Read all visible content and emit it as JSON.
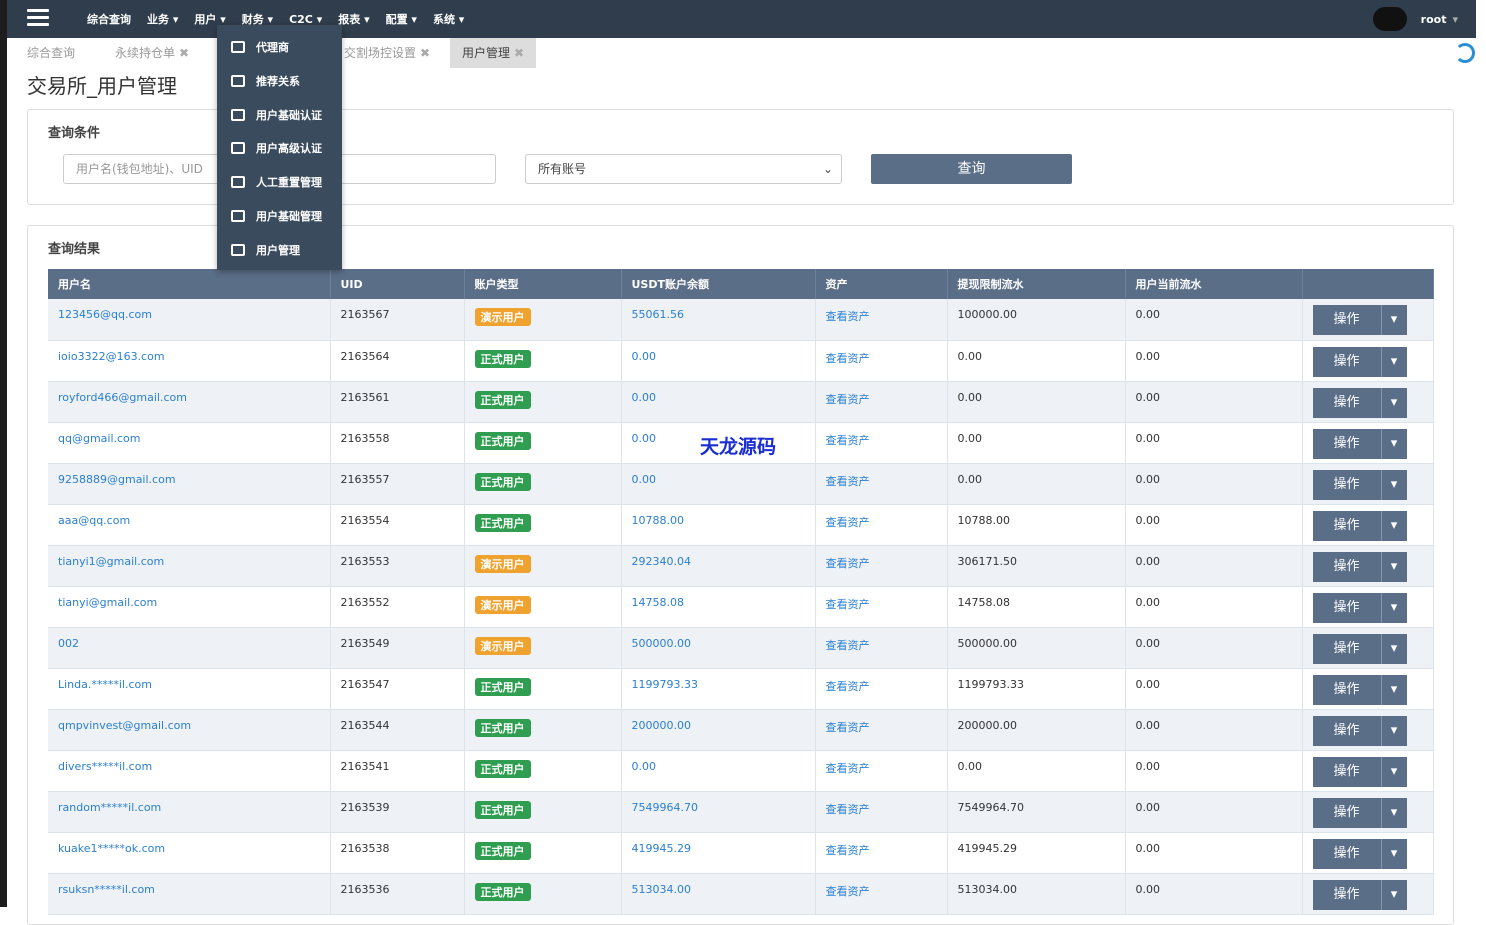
{
  "navbar": {
    "items": [
      "综合查询",
      "业务",
      "用户",
      "财务",
      "C2C",
      "报表",
      "配置",
      "系统"
    ],
    "user": "root"
  },
  "dropdown": {
    "items": [
      "代理商",
      "推荐关系",
      "用户基础认证",
      "用户高级认证",
      "人工重置管理",
      "用户基础管理",
      "用户管理"
    ]
  },
  "tabs": [
    "综合查询",
    "永续持仓单",
    "交割场控设置",
    "用户管理"
  ],
  "page_title": "交易所_用户管理",
  "query": {
    "title": "查询条件",
    "placeholder": "用户名(钱包地址)、UID",
    "select": "所有账号",
    "button": "查询"
  },
  "results": {
    "title": "查询结果",
    "columns": [
      "用户名",
      "UID",
      "账户类型",
      "USDT账户余额",
      "资产",
      "提现限制流水",
      "用户当前流水"
    ],
    "asset_link": "查看资产",
    "action": "操作",
    "rows": [
      {
        "username": "123456@qq.com",
        "uid": "2163567",
        "type": "演示用户",
        "balance": "55061.56",
        "limit": "100000.00",
        "current": "0.00"
      },
      {
        "username": "ioio3322@163.com",
        "uid": "2163564",
        "type": "正式用户",
        "balance": "0.00",
        "limit": "0.00",
        "current": "0.00"
      },
      {
        "username": "royford466@gmail.com",
        "uid": "2163561",
        "type": "正式用户",
        "balance": "0.00",
        "limit": "0.00",
        "current": "0.00"
      },
      {
        "username": "qq@gmail.com",
        "uid": "2163558",
        "type": "正式用户",
        "balance": "0.00",
        "limit": "0.00",
        "current": "0.00"
      },
      {
        "username": "9258889@gmail.com",
        "uid": "2163557",
        "type": "正式用户",
        "balance": "0.00",
        "limit": "0.00",
        "current": "0.00"
      },
      {
        "username": "aaa@qq.com",
        "uid": "2163554",
        "type": "正式用户",
        "balance": "10788.00",
        "limit": "10788.00",
        "current": "0.00"
      },
      {
        "username": "tianyi1@gmail.com",
        "uid": "2163553",
        "type": "演示用户",
        "balance": "292340.04",
        "limit": "306171.50",
        "current": "0.00"
      },
      {
        "username": "tianyi@gmail.com",
        "uid": "2163552",
        "type": "演示用户",
        "balance": "14758.08",
        "limit": "14758.08",
        "current": "0.00"
      },
      {
        "username": "002",
        "uid": "2163549",
        "type": "演示用户",
        "balance": "500000.00",
        "limit": "500000.00",
        "current": "0.00"
      },
      {
        "username": "Linda.*****il.com",
        "uid": "2163547",
        "type": "正式用户",
        "balance": "1199793.33",
        "limit": "1199793.33",
        "current": "0.00"
      },
      {
        "username": "qmpvinvest@gmail.com",
        "uid": "2163544",
        "type": "正式用户",
        "balance": "200000.00",
        "limit": "200000.00",
        "current": "0.00"
      },
      {
        "username": "divers*****il.com",
        "uid": "2163541",
        "type": "正式用户",
        "balance": "0.00",
        "limit": "0.00",
        "current": "0.00"
      },
      {
        "username": "random*****il.com",
        "uid": "2163539",
        "type": "正式用户",
        "balance": "7549964.70",
        "limit": "7549964.70",
        "current": "0.00"
      },
      {
        "username": "kuake1*****ok.com",
        "uid": "2163538",
        "type": "正式用户",
        "balance": "419945.29",
        "limit": "419945.29",
        "current": "0.00"
      },
      {
        "username": "rsuksn*****il.com",
        "uid": "2163536",
        "type": "正式用户",
        "balance": "513034.00",
        "limit": "513034.00",
        "current": "0.00"
      }
    ]
  },
  "watermark": "天龙源码"
}
